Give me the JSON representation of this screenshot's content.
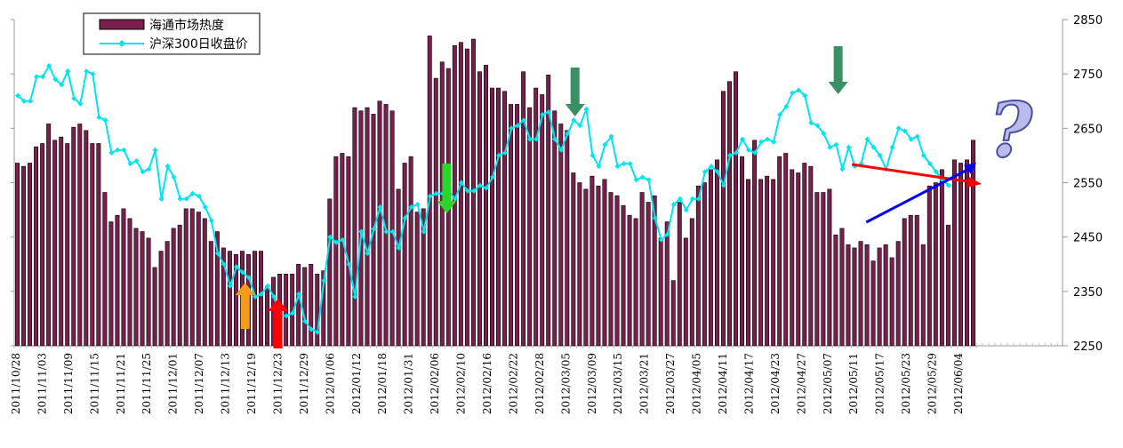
{
  "chart_data": {
    "type": "bar+line",
    "title": "",
    "xlabel": "",
    "ylabel": "",
    "legend": {
      "placement": "top-left",
      "items": [
        {
          "label": "海通市场热度",
          "kind": "bar",
          "color": "#7a1f4d"
        },
        {
          "label": "沪深300日收盘价",
          "kind": "line",
          "color": "#00e5ef"
        }
      ]
    },
    "y_right": {
      "min": 2250,
      "max": 2850,
      "ticks": [
        2250,
        2350,
        2450,
        2550,
        2650,
        2750,
        2850
      ]
    },
    "y_left": {
      "min": 0,
      "max": 100,
      "ticks_labeled": false
    },
    "grid": false,
    "x_tick_labels": [
      "2011/10/28",
      "2011/11/03",
      "2011/11/09",
      "2011/11/15",
      "2011/11/21",
      "2011/11/25",
      "2011/12/01",
      "2011/12/07",
      "2011/12/13",
      "2011/12/19",
      "2011/12/23",
      "2011/12/29",
      "2012/01/06",
      "2012/01/12",
      "2012/01/18",
      "2012/01/31",
      "2012/02/06",
      "2012/02/10",
      "2012/02/16",
      "2012/02/22",
      "2012/02/28",
      "2012/03/05",
      "2012/03/09",
      "2012/03/15",
      "2012/03/21",
      "2012/03/27",
      "2012/04/05",
      "2012/04/11",
      "2012/04/17",
      "2012/04/23",
      "2012/04/27",
      "2012/05/07",
      "2012/05/11",
      "2012/05/17",
      "2012/05/23",
      "2012/05/29",
      "2012/06/04"
    ],
    "series": [
      {
        "name": "海通市场热度",
        "type": "bar",
        "color": "#7a1f4d",
        "values": [
          56,
          55,
          56,
          61,
          62,
          68,
          63,
          64,
          62,
          67,
          68,
          66,
          62,
          62,
          47,
          38,
          40,
          42,
          39,
          36,
          35,
          33,
          24,
          29,
          32,
          36,
          37,
          42,
          42,
          41,
          39,
          32,
          35,
          30,
          29,
          28,
          29,
          28,
          29,
          29,
          18,
          21,
          22,
          22,
          22,
          25,
          24,
          25,
          22,
          23,
          45,
          58,
          59,
          58,
          73,
          72,
          73,
          71,
          75,
          74,
          72,
          48,
          56,
          58,
          41,
          42,
          95,
          82,
          87,
          85,
          92,
          93,
          91,
          94,
          84,
          86,
          79,
          79,
          78,
          74,
          74,
          84,
          73,
          79,
          77,
          83,
          72,
          68,
          66,
          53,
          50,
          48,
          52,
          49,
          51,
          47,
          46,
          43,
          40,
          39,
          47,
          44,
          46,
          33,
          38,
          20,
          44,
          33,
          39,
          49,
          50,
          54,
          57,
          78,
          81,
          84,
          58,
          51,
          63,
          51,
          52,
          51,
          58,
          59,
          54,
          53,
          56,
          55,
          47,
          47,
          48,
          34,
          36,
          31,
          30,
          32,
          31,
          26,
          30,
          31,
          27,
          32,
          39,
          40,
          40,
          31,
          49,
          50,
          54,
          37,
          57,
          56,
          57,
          63
        ],
        "show_values": false
      },
      {
        "name": "沪深300日收盘价",
        "type": "line",
        "color": "#00e5ef",
        "values": [
          2710,
          2700,
          2700,
          2745,
          2745,
          2765,
          2740,
          2730,
          2755,
          2705,
          2695,
          2755,
          2750,
          2670,
          2665,
          2605,
          2610,
          2610,
          2585,
          2590,
          2570,
          2575,
          2610,
          2520,
          2580,
          2560,
          2520,
          2520,
          2530,
          2525,
          2505,
          2480,
          2420,
          2400,
          2360,
          2395,
          2385,
          2375,
          2340,
          2345,
          2360,
          2340,
          2305,
          2305,
          2310,
          2345,
          2295,
          2280,
          2275,
          2370,
          2450,
          2440,
          2445,
          2400,
          2340,
          2460,
          2420,
          2465,
          2505,
          2460,
          2460,
          2430,
          2485,
          2505,
          2510,
          2460,
          2525,
          2530,
          2530,
          2535,
          2520,
          2550,
          2535,
          2535,
          2545,
          2540,
          2560,
          2600,
          2605,
          2650,
          2655,
          2665,
          2630,
          2630,
          2675,
          2680,
          2630,
          2610,
          2640,
          2665,
          2655,
          2685,
          2600,
          2580,
          2620,
          2635,
          2580,
          2585,
          2585,
          2555,
          2560,
          2555,
          2485,
          2445,
          2455,
          2510,
          2520,
          2500,
          2520,
          2520,
          2570,
          2580,
          2570,
          2545,
          2600,
          2605,
          2630,
          2610,
          2605,
          2625,
          2630,
          2625,
          2675,
          2690,
          2715,
          2720,
          2710,
          2660,
          2655,
          2640,
          2615,
          2620,
          2575,
          2615,
          2580,
          2585,
          2630,
          2615,
          2600,
          2575,
          2615,
          2650,
          2645,
          2630,
          2635,
          2600,
          2585,
          2570,
          2555,
          2545
        ]
      }
    ],
    "annotations": [
      {
        "kind": "arrow-up",
        "color": "#f59b19",
        "near": "2011/12/19"
      },
      {
        "kind": "arrow-up",
        "color": "#ff0000",
        "near": "2011/12/23"
      },
      {
        "kind": "arrow-down",
        "color": "#2bd62b",
        "near": "2012/02/08"
      },
      {
        "kind": "arrow-down",
        "color": "#3a8f63",
        "near": "2012/03/05"
      },
      {
        "kind": "arrow-down",
        "color": "#3a8f63",
        "near": "2012/05/08"
      },
      {
        "kind": "trend-line-down",
        "color": "#ff0000",
        "near": "2012/05/11"
      },
      {
        "kind": "trend-line-up",
        "color": "#0000ff",
        "near": "2012/05/11"
      },
      {
        "kind": "question-mark-icon",
        "color": "#b9bcea"
      }
    ]
  }
}
